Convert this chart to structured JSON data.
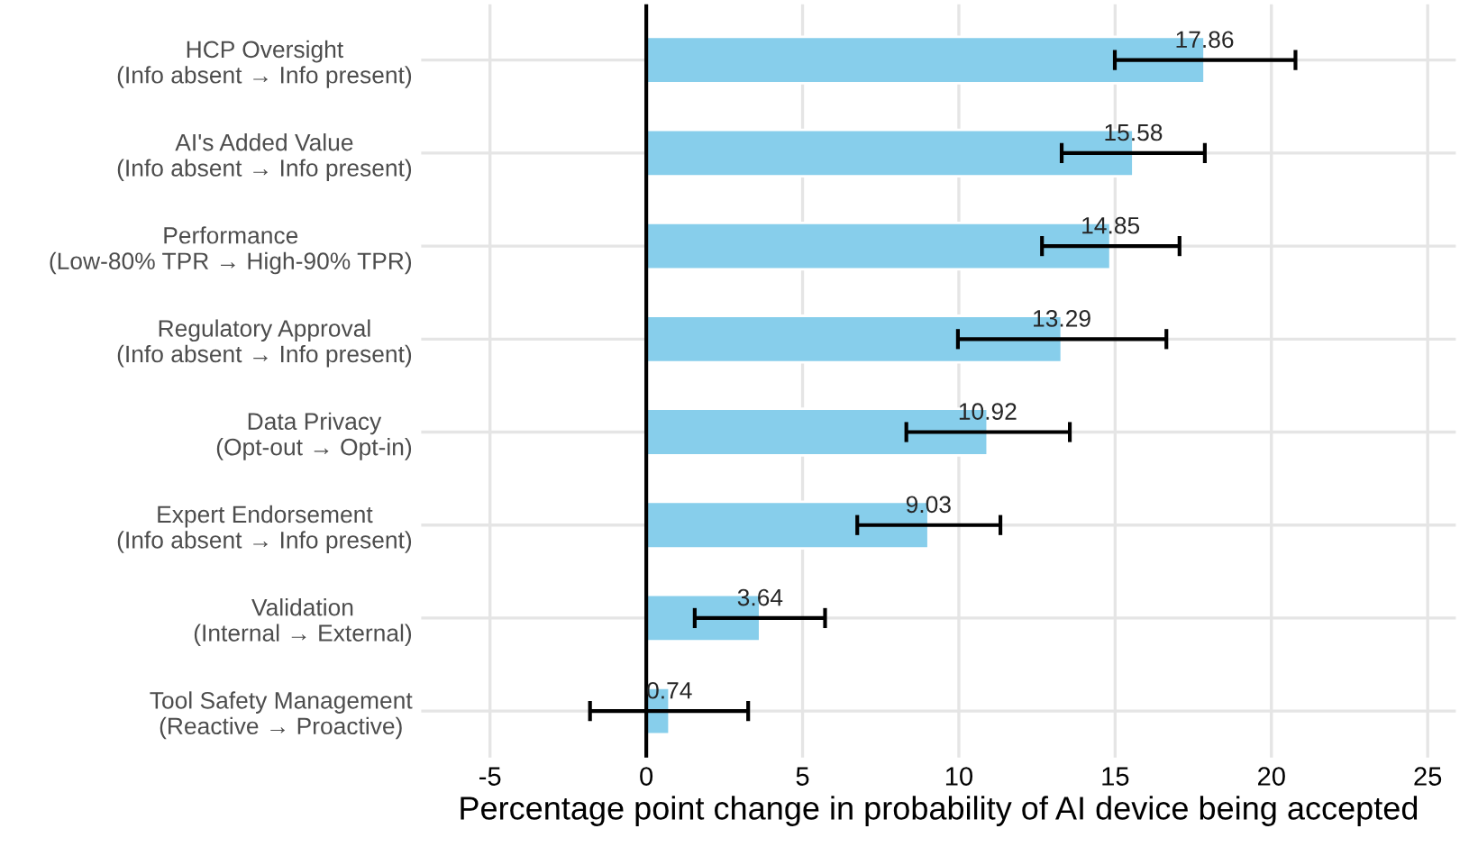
{
  "chart_data": {
    "type": "bar",
    "orientation": "horizontal",
    "categories": [
      "HCP Oversight\n(Info absent → Info present)",
      "AI's Added Value\n(Info absent → Info present)",
      "Performance\n(Low-80% TPR → High-90% TPR)",
      "Regulatory Approval\n(Info absent → Info present)",
      "Data Privacy\n(Opt-out → Opt-in)",
      "Expert Endorsement\n(Info absent → Info present)",
      "Validation\n(Internal → External)",
      "Tool Safety Management\n(Reactive → Proactive)"
    ],
    "values": [
      17.86,
      15.58,
      14.85,
      13.29,
      10.92,
      9.03,
      3.64,
      0.74
    ],
    "errors": [
      [
        14.99,
        20.77
      ],
      [
        13.29,
        17.87
      ],
      [
        12.66,
        17.06
      ],
      [
        9.97,
        16.64
      ],
      [
        8.32,
        13.55
      ],
      [
        6.75,
        11.33
      ],
      [
        1.55,
        5.72
      ],
      [
        -1.8,
        3.26
      ]
    ],
    "color": "#87ceeb",
    "data_labels": true,
    "xlabel": "Percentage point change in probability of AI device being accepted",
    "xlim": [
      -7.2,
      25.9
    ],
    "xticks": [
      -5,
      0,
      5,
      10,
      15,
      20,
      25
    ],
    "ref_lines": [
      {
        "axis": "x",
        "value": 0,
        "color": "#000000"
      }
    ],
    "grid": true
  }
}
